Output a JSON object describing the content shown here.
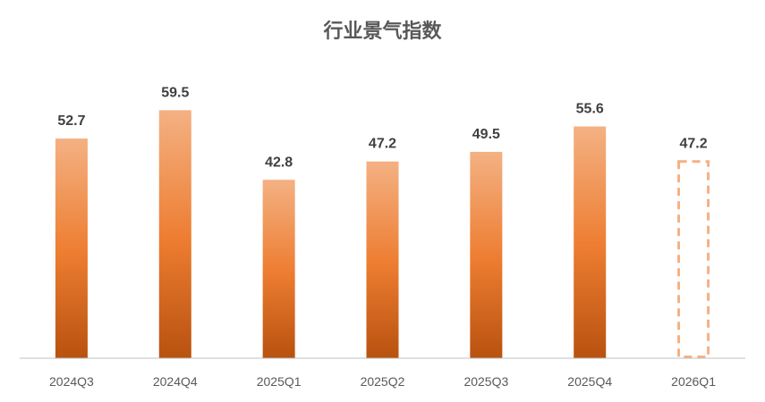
{
  "chart_data": {
    "type": "bar",
    "title": "行业景气指数",
    "categories": [
      "2024Q3",
      "2024Q4",
      "2025Q1",
      "2025Q2",
      "2025Q3",
      "2025Q4",
      "2026Q1"
    ],
    "values": [
      52.7,
      59.5,
      42.8,
      47.2,
      49.5,
      55.6,
      47.2
    ],
    "value_labels": [
      "52.7",
      "59.5",
      "42.8",
      "47.2",
      "49.5",
      "55.6",
      "47.2"
    ],
    "forecast": [
      false,
      false,
      false,
      false,
      false,
      false,
      true
    ],
    "ylim": [
      0,
      63
    ],
    "xlabel": "",
    "ylabel": "",
    "grid": false,
    "legend": "none",
    "colors": {
      "bar_top": "#f4b183",
      "bar_mid": "#ed7d31",
      "bar_bottom": "#b8520f",
      "forecast_outline": "#f4b183",
      "axis": "#bfbfbf"
    }
  }
}
